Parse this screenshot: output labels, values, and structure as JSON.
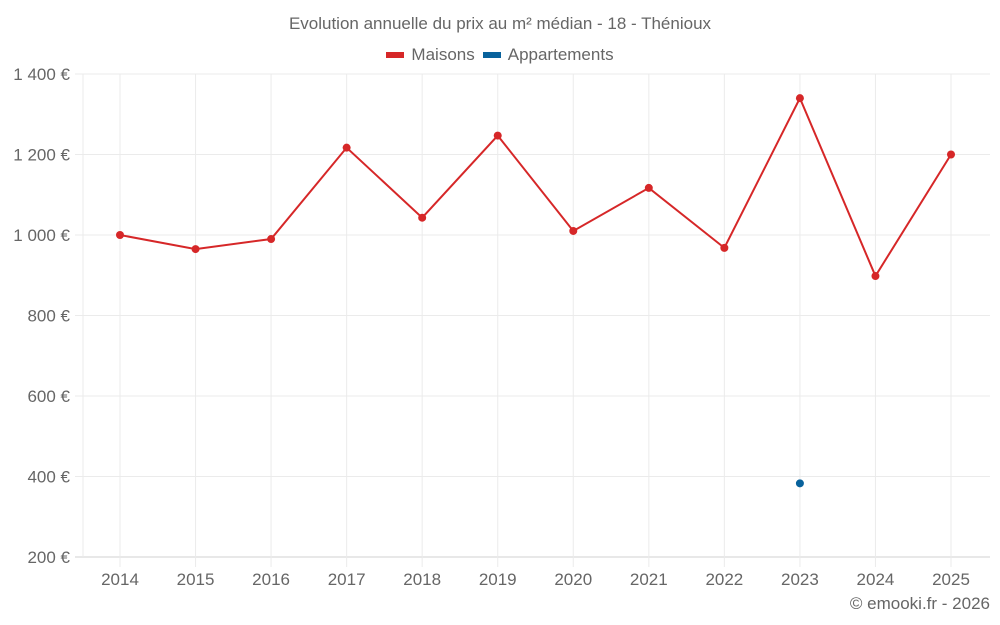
{
  "chart_data": {
    "type": "line",
    "title": "Evolution annuelle du prix au m² médian - 18 - Thénioux",
    "xlabel": "",
    "ylabel": "",
    "categories": [
      "2014",
      "2015",
      "2016",
      "2017",
      "2018",
      "2019",
      "2020",
      "2021",
      "2022",
      "2023",
      "2024",
      "2025"
    ],
    "series": [
      {
        "name": "Maisons",
        "color": "#d62728",
        "values": [
          1000,
          965,
          990,
          1217,
          1043,
          1247,
          1010,
          1117,
          968,
          1340,
          898,
          1200
        ]
      },
      {
        "name": "Appartements",
        "color": "#08629c",
        "values": [
          null,
          null,
          null,
          null,
          null,
          null,
          null,
          null,
          null,
          383,
          null,
          null
        ]
      }
    ],
    "yticks": [
      200,
      400,
      600,
      800,
      1000,
      1200,
      1400
    ],
    "ytick_labels": [
      "200 €",
      "400 €",
      "600 €",
      "800 €",
      "1 000 €",
      "1 200 €",
      "1 400 €"
    ],
    "ylim": [
      200,
      1400
    ],
    "grid": true,
    "legend_position": "top"
  },
  "legend": {
    "items": [
      {
        "label": "Maisons",
        "color": "#d62728"
      },
      {
        "label": "Appartements",
        "color": "#08629c"
      }
    ]
  },
  "footer": {
    "copyright": "© emooki.fr - 2026"
  }
}
